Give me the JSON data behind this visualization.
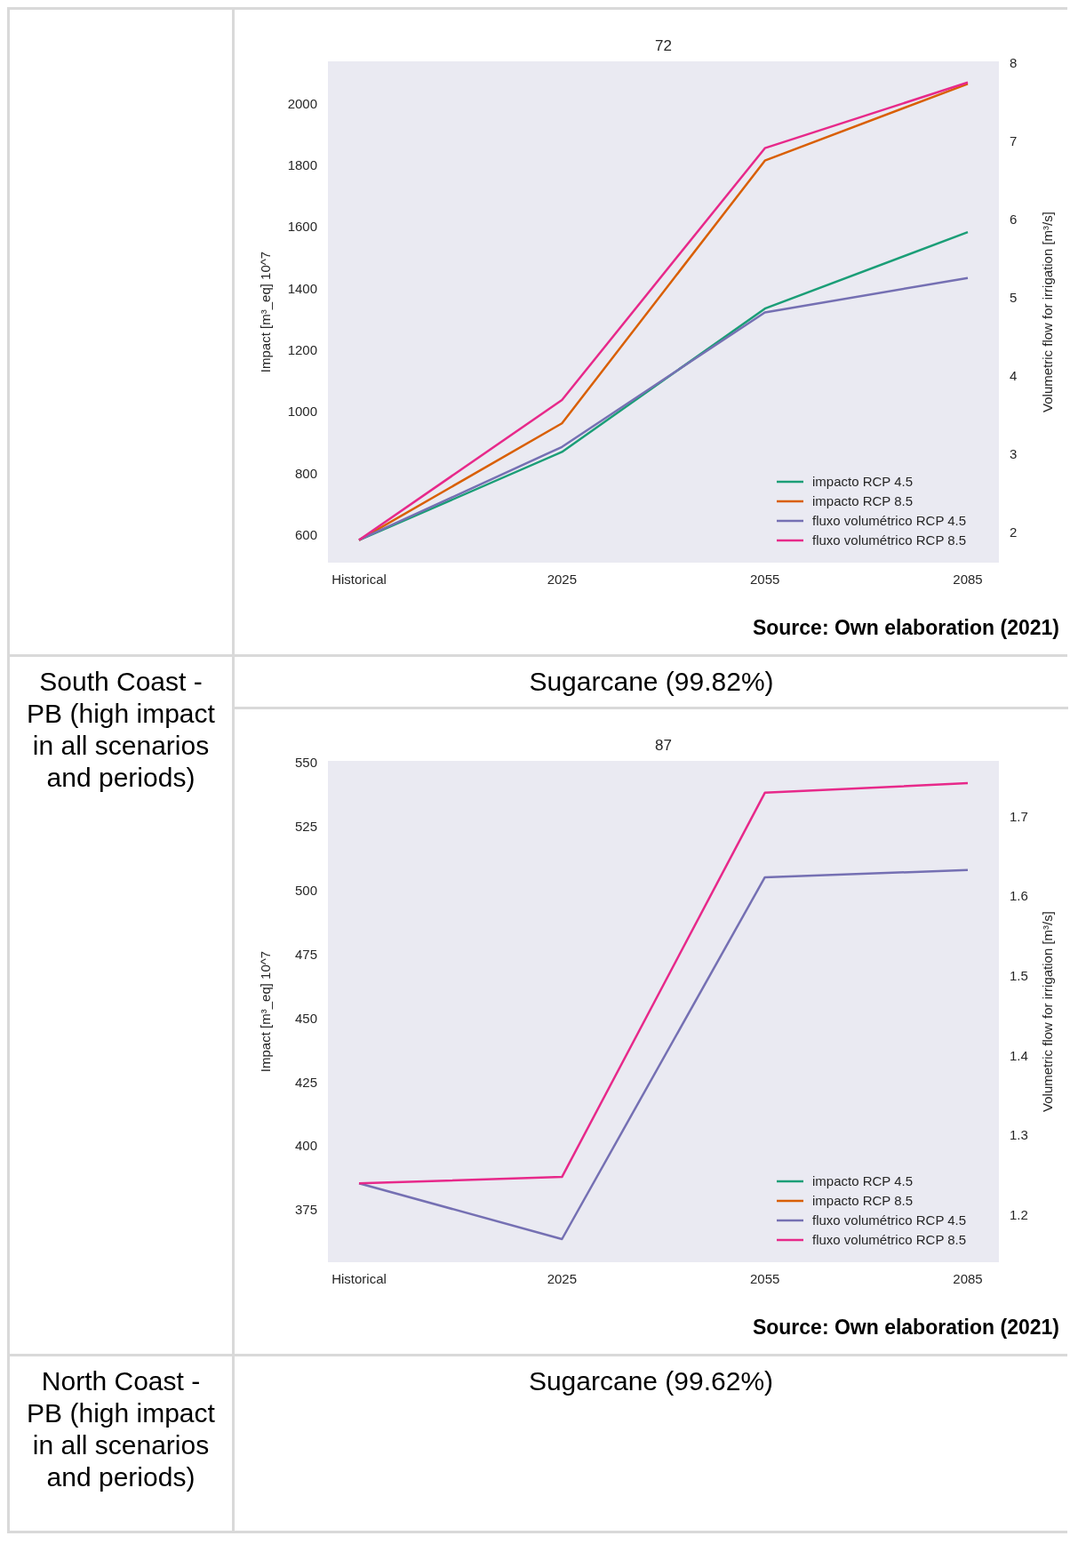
{
  "chart_data": [
    {
      "type": "line",
      "title": "72",
      "categories": [
        "Historical",
        "2025",
        "2055",
        "2085"
      ],
      "ylabel": "Impact [m³_eq] 10^7",
      "y2label": "Volumetric flow for irrigation [m³/s]",
      "ylim": [
        511,
        2137
      ],
      "yticks": [
        600,
        800,
        1000,
        1200,
        1400,
        1600,
        1800,
        2000
      ],
      "y2lim": [
        1.61,
        8.02
      ],
      "y2ticks": [
        2,
        3,
        4,
        5,
        6,
        7,
        8
      ],
      "grid": false,
      "legend": "bottom right",
      "annotations": [
        "Source: Own elaboration (2021)"
      ],
      "series": [
        {
          "name": "impacto RCP 4.5",
          "color": "#1b9e77",
          "values": [
            584,
            870,
            1335,
            1583
          ]
        },
        {
          "name": "impacto RCP 8.5",
          "color": "#d95f02",
          "values": [
            584,
            963,
            1815,
            2064
          ]
        },
        {
          "name": "fluxo volumétrico RCP 4.5",
          "color": "#7570b3",
          "axis": "y2",
          "values": [
            1.9,
            3.09,
            4.81,
            5.25
          ]
        },
        {
          "name": "fluxo volumétrico RCP 8.5",
          "color": "#e7298a",
          "axis": "y2",
          "values": [
            1.9,
            3.69,
            6.91,
            7.75
          ]
        }
      ]
    },
    {
      "type": "line",
      "title": "87",
      "categories": [
        "Historical",
        "2025",
        "2055",
        "2085"
      ],
      "ylabel": "Impact [m³_eq] 10^7",
      "y2label": "Volumetric flow for irrigation [m³/s]",
      "ylim": [
        354.6,
        550.8
      ],
      "yticks": [
        375,
        400,
        425,
        450,
        475,
        500,
        525,
        550
      ],
      "y2lim": [
        1.141,
        1.77
      ],
      "y2ticks": [
        1.2,
        1.3,
        1.4,
        1.5,
        1.6,
        1.7
      ],
      "grid": false,
      "legend": "bottom right",
      "annotations": [
        "South Coast - PB (high impact in all scenarios and periods)",
        "Sugarcane (99.82%)",
        "Source: Own elaboration (2021)"
      ],
      "series": [
        {
          "name": "impacto RCP 4.5",
          "color": "#1b9e77",
          "values": [
            null,
            null,
            null,
            null
          ]
        },
        {
          "name": "impacto RCP 8.5",
          "color": "#d95f02",
          "values": [
            null,
            null,
            null,
            null
          ]
        },
        {
          "name": "fluxo volumétrico RCP 4.5",
          "color": "#7570b3",
          "axis": "y2",
          "values": [
            1.24,
            1.17,
            1.624,
            1.633
          ]
        },
        {
          "name": "fluxo volumétrico RCP 8.5",
          "color": "#e7298a",
          "axis": "y2",
          "values": [
            1.24,
            1.248,
            1.73,
            1.742
          ]
        }
      ]
    },
    {
      "type": "other",
      "annotations": [
        "North Coast - PB (high impact in all scenarios and periods)",
        "Sugarcane (99.62%)"
      ]
    }
  ]
}
